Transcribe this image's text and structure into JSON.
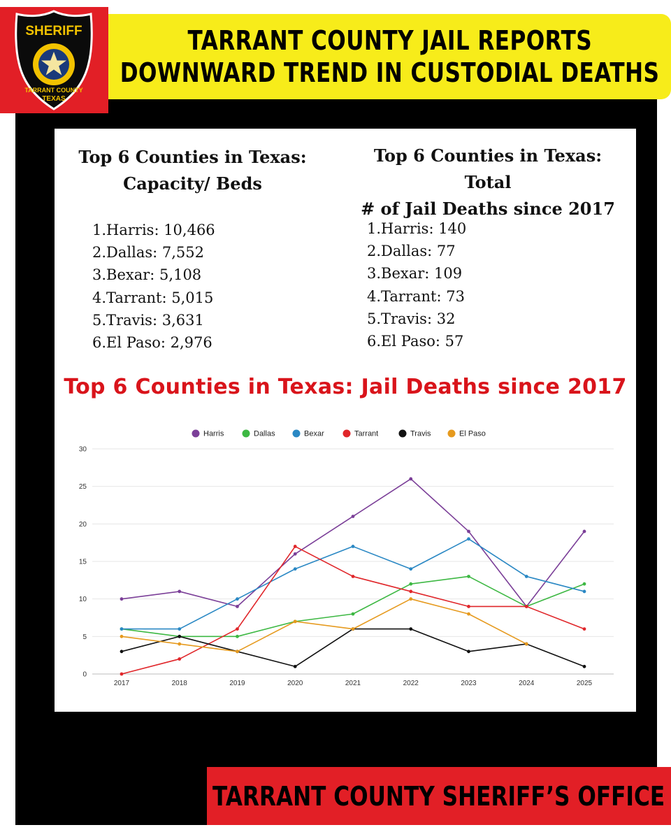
{
  "header": {
    "title_line1": "TARRANT COUNTY JAIL REPORTS",
    "title_line2": "DOWNWARD TREND IN CUSTODIAL DEATHS"
  },
  "badge": {
    "top_text": "SHERIFF",
    "ring_text": "TARRANT COUNTY",
    "bottom_text": "TEXAS"
  },
  "capacity": {
    "heading_line1": "Top 6 Counties in Texas:",
    "heading_line2": "Capacity/ Beds",
    "items": [
      "1.Harris: 10,466",
      "2.Dallas: 7,552",
      "3.Bexar: 5,108",
      "4.Tarrant: 5,015",
      "5.Travis: 3,631",
      "6.El Paso: 2,976"
    ]
  },
  "deaths_total": {
    "heading_line1": "Top 6 Counties in Texas: Total",
    "heading_line2": "# of Jail Deaths since 2017",
    "items": [
      "1.Harris: 140",
      "2.Dallas: 77",
      "3.Bexar: 109",
      "4.Tarrant: 73",
      "5.Travis: 32",
      "6.El Paso: 57"
    ]
  },
  "chart_data": {
    "type": "line",
    "title": "Top 6 Counties in Texas: Jail Deaths since 2017",
    "xlabel": "",
    "ylabel": "",
    "x": [
      "2017",
      "2018",
      "2019",
      "2020",
      "2021",
      "2022",
      "2023",
      "2024",
      "2025"
    ],
    "ylim": [
      0,
      30
    ],
    "yticks": [
      0,
      5,
      10,
      15,
      20,
      25,
      30
    ],
    "grid": true,
    "legend_position": "top-center",
    "series": [
      {
        "name": "Harris",
        "color": "#7b3f98",
        "values": [
          10,
          11,
          9,
          16,
          21,
          26,
          19,
          9,
          19
        ]
      },
      {
        "name": "Dallas",
        "color": "#3db843",
        "values": [
          6,
          5,
          5,
          7,
          8,
          12,
          13,
          9,
          12
        ]
      },
      {
        "name": "Bexar",
        "color": "#2a88c4",
        "values": [
          6,
          6,
          10,
          14,
          17,
          14,
          18,
          13,
          11
        ]
      },
      {
        "name": "Tarrant",
        "color": "#e0262a",
        "values": [
          0,
          2,
          6,
          17,
          13,
          11,
          9,
          9,
          6
        ]
      },
      {
        "name": "Travis",
        "color": "#111111",
        "values": [
          3,
          5,
          3,
          1,
          6,
          6,
          3,
          4,
          1
        ]
      },
      {
        "name": "El Paso",
        "color": "#e69a1e",
        "values": [
          5,
          4,
          3,
          7,
          6,
          10,
          8,
          4,
          null
        ]
      }
    ]
  },
  "footer": {
    "text": "TARRANT COUNTY SHERIFF’S OFFICE"
  }
}
